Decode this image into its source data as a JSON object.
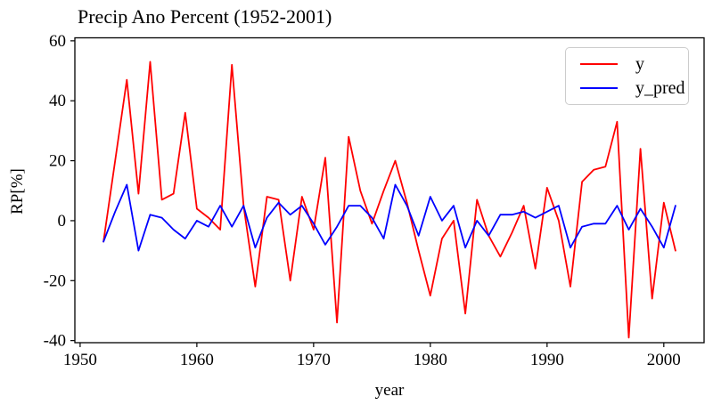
{
  "title": "Precip Ano Percent (1952-2001)",
  "xlabel": "year",
  "ylabel": "RP[%]",
  "legend": {
    "position": "upper right",
    "entries": [
      {
        "label": "y",
        "color": "#ff0000"
      },
      {
        "label": "y_pred",
        "color": "#0000ff"
      }
    ]
  },
  "axes": {
    "x_ticks": [
      1950,
      1960,
      1970,
      1980,
      1990,
      2000
    ],
    "y_ticks": [
      60,
      40,
      20,
      0,
      -20,
      -40
    ],
    "xlim": [
      1949.55,
      2003.45
    ],
    "ylim": [
      -40.7,
      61.0
    ],
    "spine_color": "#000000",
    "grid": false
  },
  "chart_data": {
    "type": "line",
    "title": "Precip Ano Percent (1952-2001)",
    "xlabel": "year",
    "ylabel": "RP[%]",
    "grid": false,
    "legend_position": "upper right",
    "xlim": [
      1949.55,
      2003.45
    ],
    "ylim": [
      -40.7,
      61.0
    ],
    "x": [
      1952,
      1953,
      1954,
      1955,
      1956,
      1957,
      1958,
      1959,
      1960,
      1961,
      1962,
      1963,
      1964,
      1965,
      1966,
      1967,
      1968,
      1969,
      1970,
      1971,
      1972,
      1973,
      1974,
      1975,
      1976,
      1977,
      1978,
      1979,
      1980,
      1981,
      1982,
      1983,
      1984,
      1985,
      1986,
      1987,
      1988,
      1989,
      1990,
      1991,
      1992,
      1993,
      1994,
      1995,
      1996,
      1997,
      1998,
      1999,
      2000,
      2001
    ],
    "series": [
      {
        "name": "y",
        "color": "#ff0000",
        "values": [
          -7,
          20,
          47,
          9,
          53,
          7,
          9,
          36,
          4,
          1,
          -3,
          52,
          5,
          -22,
          8,
          7,
          -20,
          8,
          -3,
          21,
          -34,
          28,
          10,
          -1,
          10,
          20,
          6,
          -10,
          -25,
          -6,
          0,
          -31,
          7,
          -5,
          -12,
          -4,
          5,
          -16,
          11,
          0,
          -22,
          13,
          17,
          18,
          33,
          -39,
          24,
          -26,
          6,
          -10
        ]
      },
      {
        "name": "y_pred",
        "color": "#0000ff",
        "values": [
          -7,
          3,
          12,
          -10,
          2,
          1,
          -3,
          -6,
          0,
          -2,
          5,
          -2,
          5,
          -9,
          1,
          6,
          2,
          5,
          -1,
          -8,
          -2,
          5,
          5,
          1,
          -6,
          12,
          5,
          -5,
          8,
          0,
          5,
          -9,
          0,
          -5,
          2,
          2,
          3,
          1,
          3,
          5,
          -9,
          -2,
          -1,
          -1,
          5,
          -3,
          4,
          -2,
          -9,
          5
        ]
      }
    ]
  }
}
